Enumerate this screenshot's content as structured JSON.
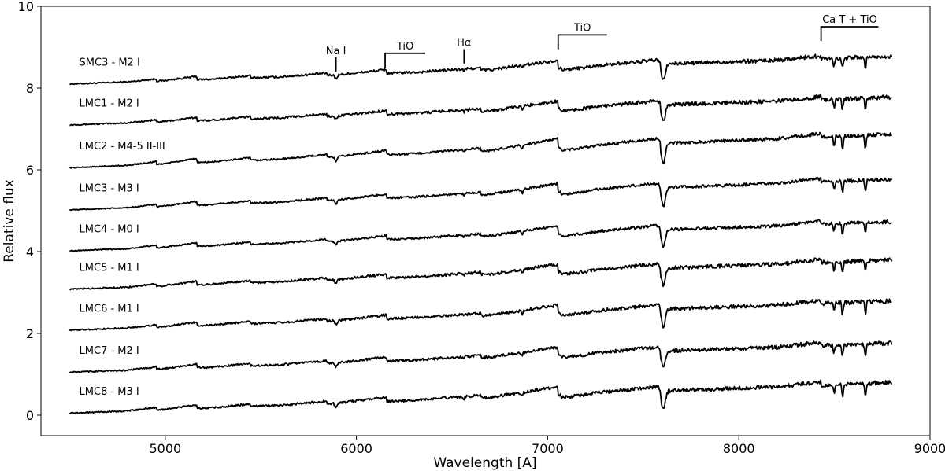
{
  "chart_data": {
    "type": "line",
    "xlabel": "Wavelength [A]",
    "ylabel": "Relative flux",
    "xlim": [
      4350,
      9000
    ],
    "ylim": [
      -0.5,
      10
    ],
    "xticks": [
      5000,
      6000,
      7000,
      8000,
      9000
    ],
    "yticks": [
      0,
      2,
      4,
      6,
      8,
      10
    ],
    "x_range": [
      4500,
      8800
    ],
    "series": [
      {
        "name": "SMC3 - M2 I",
        "offset": 8.1,
        "depth": 0.9,
        "noise": 0.05
      },
      {
        "name": "LMC1 - M2 I",
        "offset": 7.1,
        "depth": 0.9,
        "noise": 0.05
      },
      {
        "name": "LMC2 - M4-5 II-III",
        "offset": 6.05,
        "depth": 1.1,
        "noise": 0.04
      },
      {
        "name": "LMC3 - M3 I",
        "offset": 5.02,
        "depth": 1.0,
        "noise": 0.04
      },
      {
        "name": "LMC4 - M0 I",
        "offset": 4.02,
        "depth": 0.95,
        "noise": 0.04
      },
      {
        "name": "LMC5 - M1 I",
        "offset": 3.08,
        "depth": 0.95,
        "noise": 0.05
      },
      {
        "name": "LMC6 - M1 I",
        "offset": 2.08,
        "depth": 0.95,
        "noise": 0.05
      },
      {
        "name": "LMC7 - M2 I",
        "offset": 1.05,
        "depth": 0.95,
        "noise": 0.05
      },
      {
        "name": "LMC8 - M3 I",
        "offset": 0.05,
        "depth": 1.0,
        "noise": 0.05
      }
    ],
    "annotations": [
      {
        "label": "Na I",
        "type": "line",
        "x": 5893,
        "y": 8.75
      },
      {
        "label": "TiO",
        "type": "bracket",
        "x": 6150,
        "x2": 6360,
        "y": 8.85
      },
      {
        "label": "Hα",
        "type": "line",
        "x": 6563,
        "y": 8.95
      },
      {
        "label": "TiO",
        "type": "bracket",
        "x": 7055,
        "x2": 7310,
        "y": 9.3
      },
      {
        "label": "Ca T + TiO",
        "type": "bracket",
        "x": 8430,
        "x2": 8730,
        "y": 9.5
      }
    ]
  }
}
